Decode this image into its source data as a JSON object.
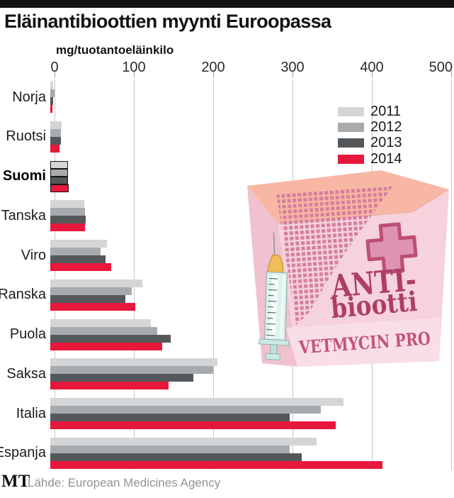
{
  "meta": {
    "title": "Eläinantibioottien myynti Euroopassa",
    "unit_label": "mg/tuotantoeläinkilo",
    "logo": "MT",
    "source": "Lähde: European Medicines Agency"
  },
  "axis": {
    "ticks": [
      "0",
      "100",
      "200",
      "300",
      "400",
      "500"
    ],
    "max": 500
  },
  "legend": [
    {
      "year": "2011",
      "color": "#d3d5d6"
    },
    {
      "year": "2012",
      "color": "#a7abae"
    },
    {
      "year": "2013",
      "color": "#54585b"
    },
    {
      "year": "2014",
      "color": "#e8173c"
    }
  ],
  "countries": [
    {
      "name": "Norja",
      "emphasis": false,
      "values": [
        4,
        5,
        4,
        3
      ]
    },
    {
      "name": "Ruotsi",
      "emphasis": false,
      "values": [
        14,
        13,
        13,
        12
      ]
    },
    {
      "name": "Suomi",
      "emphasis": true,
      "values": [
        22,
        22,
        22,
        23
      ]
    },
    {
      "name": "Tanska",
      "emphasis": false,
      "values": [
        43,
        44,
        45,
        44
      ]
    },
    {
      "name": "Viro",
      "emphasis": false,
      "values": [
        71,
        63,
        70,
        77
      ]
    },
    {
      "name": "Ranska",
      "emphasis": false,
      "values": [
        116,
        103,
        95,
        107
      ]
    },
    {
      "name": "Puola",
      "emphasis": false,
      "values": [
        127,
        135,
        152,
        141
      ]
    },
    {
      "name": "Saksa",
      "emphasis": false,
      "values": [
        211,
        205,
        180,
        149
      ]
    },
    {
      "name": "Italia",
      "emphasis": false,
      "values": [
        370,
        341,
        302,
        360
      ]
    },
    {
      "name": "Espanja",
      "emphasis": false,
      "values": [
        336,
        302,
        317,
        419
      ]
    }
  ],
  "package": {
    "line1": "ANTI-",
    "line2": "biootti",
    "brand": "VETMYCIN PRO"
  },
  "chart_data": {
    "type": "bar",
    "orientation": "horizontal",
    "title": "Eläinantibioottien myynti Euroopassa",
    "xlabel": "mg/tuotantoeläinkilo",
    "ylabel": "",
    "xlim": [
      0,
      500
    ],
    "grid": true,
    "legend_position": "right-top",
    "highlighted_category": "Suomi",
    "categories": [
      "Norja",
      "Ruotsi",
      "Suomi",
      "Tanska",
      "Viro",
      "Ranska",
      "Puola",
      "Saksa",
      "Italia",
      "Espanja"
    ],
    "series": [
      {
        "name": "2011",
        "color": "#d3d5d6",
        "values": [
          4,
          14,
          22,
          43,
          71,
          116,
          127,
          211,
          370,
          336
        ]
      },
      {
        "name": "2012",
        "color": "#a7abae",
        "values": [
          5,
          13,
          22,
          44,
          63,
          103,
          135,
          205,
          341,
          302
        ]
      },
      {
        "name": "2013",
        "color": "#54585b",
        "values": [
          4,
          13,
          22,
          45,
          70,
          95,
          152,
          180,
          302,
          317
        ]
      },
      {
        "name": "2014",
        "color": "#e8173c",
        "values": [
          3,
          12,
          23,
          44,
          77,
          107,
          141,
          149,
          360,
          419
        ]
      }
    ],
    "source": "Lähde: European Medicines Agency"
  }
}
